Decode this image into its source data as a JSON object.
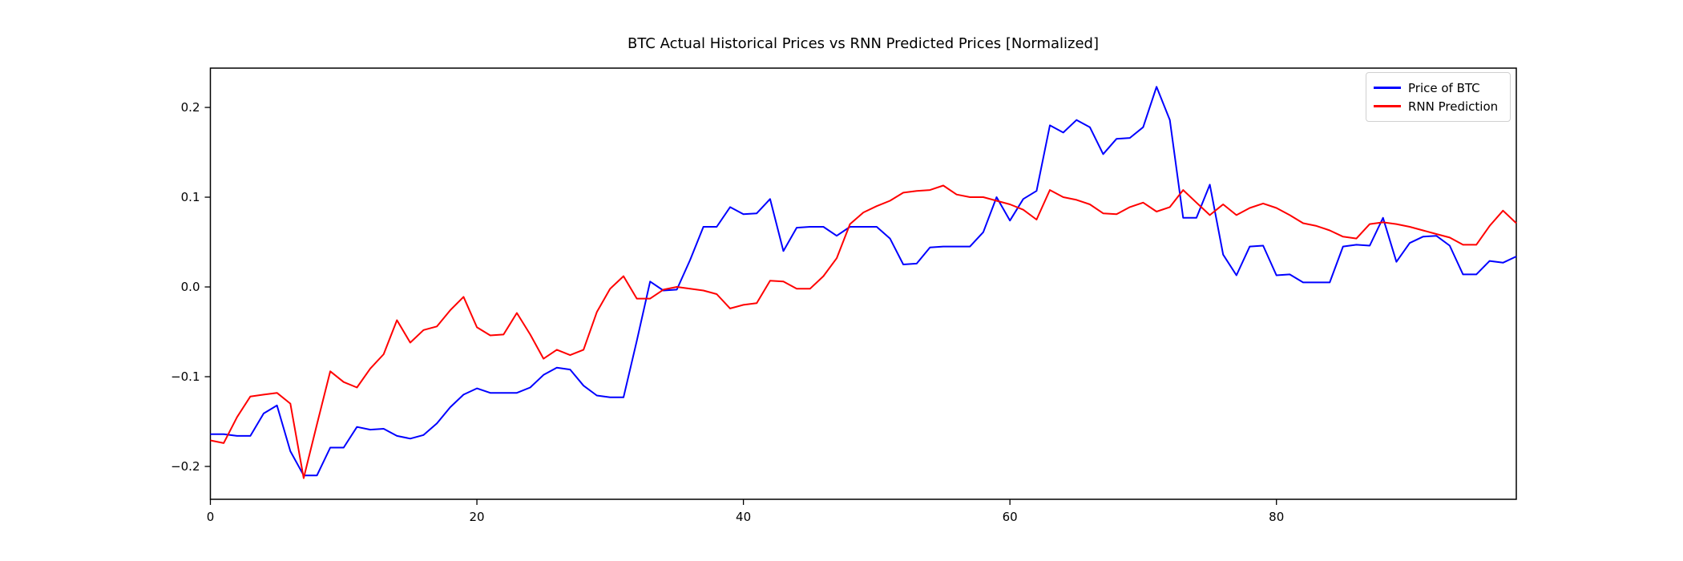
{
  "title": "BTC Actual Historical Prices vs RNN Predicted Prices [Normalized]",
  "legend": {
    "items": [
      {
        "label": "Price of BTC",
        "color": "#0000ff"
      },
      {
        "label": "RNN Prediction",
        "color": "#ff0000"
      }
    ],
    "position": "upper right"
  },
  "chart_data": {
    "type": "line",
    "title": "BTC Actual Historical Prices vs RNN Predicted Prices [Normalized]",
    "xlabel": "",
    "ylabel": "",
    "x_start": 0,
    "x_step": 1,
    "xlim": [
      0,
      98
    ],
    "ylim": [
      -0.2366,
      0.2438
    ],
    "xticks": [
      0,
      20,
      40,
      60,
      80
    ],
    "xtick_labels": [
      "0",
      "20",
      "40",
      "60",
      "80"
    ],
    "yticks": [
      -0.2,
      -0.1,
      0.0,
      0.1,
      0.2
    ],
    "ytick_labels": [
      "−0.2",
      "−0.1",
      "0.0",
      "0.1",
      "0.2"
    ],
    "grid": false,
    "legend_position": "upper right",
    "series": [
      {
        "name": "Price of BTC",
        "color": "#0000ff",
        "values": [
          -0.164,
          -0.164,
          -0.166,
          -0.166,
          -0.141,
          -0.132,
          -0.183,
          -0.21,
          -0.21,
          -0.179,
          -0.179,
          -0.156,
          -0.159,
          -0.158,
          -0.166,
          -0.169,
          -0.165,
          -0.152,
          -0.134,
          -0.12,
          -0.113,
          -0.118,
          -0.118,
          -0.118,
          -0.112,
          -0.098,
          -0.09,
          -0.092,
          -0.11,
          -0.121,
          -0.123,
          -0.123,
          -0.06,
          0.006,
          -0.004,
          -0.003,
          0.03,
          0.067,
          0.067,
          0.089,
          0.081,
          0.082,
          0.098,
          0.04,
          0.066,
          0.067,
          0.067,
          0.057,
          0.067,
          0.067,
          0.067,
          0.054,
          0.025,
          0.026,
          0.044,
          0.045,
          0.045,
          0.045,
          0.061,
          0.1,
          0.074,
          0.098,
          0.107,
          0.18,
          0.172,
          0.186,
          0.178,
          0.148,
          0.165,
          0.166,
          0.178,
          0.223,
          0.186,
          0.077,
          0.077,
          0.114,
          0.036,
          0.013,
          0.045,
          0.046,
          0.013,
          0.014,
          0.005,
          0.005,
          0.005,
          0.045,
          0.047,
          0.046,
          0.077,
          0.028,
          0.049,
          0.056,
          0.057,
          0.046,
          0.014,
          0.014,
          0.029,
          0.027,
          0.034
        ]
      },
      {
        "name": "RNN Prediction",
        "color": "#ff0000",
        "values": [
          -0.171,
          -0.174,
          -0.145,
          -0.122,
          -0.12,
          -0.118,
          -0.13,
          -0.213,
          -0.153,
          -0.094,
          -0.106,
          -0.112,
          -0.091,
          -0.075,
          -0.037,
          -0.062,
          -0.048,
          -0.044,
          -0.026,
          -0.011,
          -0.045,
          -0.054,
          -0.053,
          -0.029,
          -0.053,
          -0.08,
          -0.07,
          -0.076,
          -0.07,
          -0.028,
          -0.002,
          0.012,
          -0.013,
          -0.013,
          -0.003,
          0.0,
          -0.002,
          -0.004,
          -0.008,
          -0.024,
          -0.02,
          -0.018,
          0.007,
          0.006,
          -0.002,
          -0.002,
          0.012,
          0.032,
          0.07,
          0.083,
          0.09,
          0.096,
          0.105,
          0.107,
          0.108,
          0.113,
          0.103,
          0.1,
          0.1,
          0.096,
          0.092,
          0.086,
          0.075,
          0.108,
          0.1,
          0.097,
          0.092,
          0.082,
          0.081,
          0.089,
          0.094,
          0.084,
          0.089,
          0.108,
          0.094,
          0.08,
          0.092,
          0.08,
          0.088,
          0.093,
          0.088,
          0.08,
          0.071,
          0.068,
          0.063,
          0.056,
          0.054,
          0.07,
          0.072,
          0.07,
          0.067,
          0.063,
          0.059,
          0.055,
          0.047,
          0.047,
          0.068,
          0.085,
          0.071
        ]
      }
    ]
  }
}
